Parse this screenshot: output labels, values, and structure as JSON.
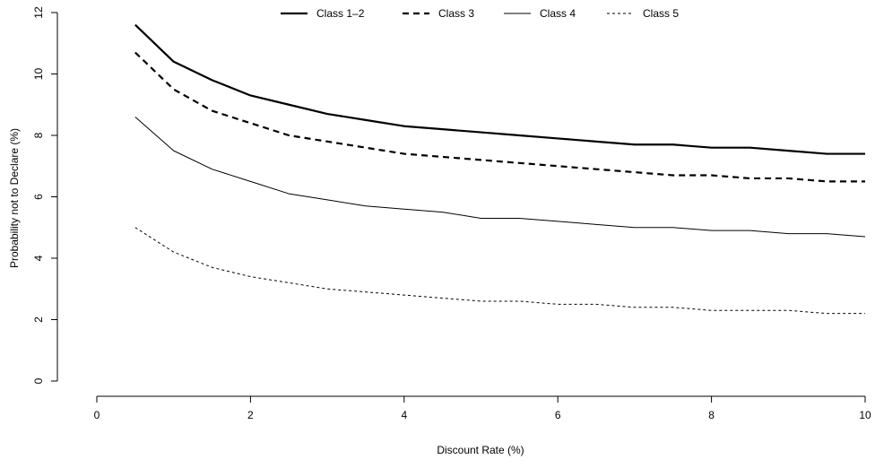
{
  "chart_data": {
    "type": "line",
    "title": "",
    "xlabel": "Discount Rate (%)",
    "ylabel": "Probability not to Declare (%)",
    "xlim": [
      0,
      10
    ],
    "ylim": [
      0,
      12
    ],
    "xticks": [
      0,
      2,
      4,
      6,
      8,
      10
    ],
    "yticks": [
      0,
      2,
      4,
      6,
      8,
      10,
      12
    ],
    "grid": false,
    "legend_position": "top",
    "x": [
      0.5,
      1.0,
      1.5,
      2.0,
      2.5,
      3.0,
      3.5,
      4.0,
      4.5,
      5.0,
      5.5,
      6.0,
      6.5,
      7.0,
      7.5,
      8.0,
      8.5,
      9.0,
      9.5,
      10.0
    ],
    "series": [
      {
        "name": "Class 1–2",
        "line_style": "solid-thick",
        "color": "#000000",
        "values": [
          11.6,
          10.4,
          9.8,
          9.3,
          9.0,
          8.7,
          8.5,
          8.3,
          8.2,
          8.1,
          8.0,
          7.9,
          7.8,
          7.7,
          7.7,
          7.6,
          7.6,
          7.5,
          7.4,
          7.4
        ]
      },
      {
        "name": "Class 3",
        "line_style": "dashed-thick",
        "color": "#000000",
        "values": [
          10.7,
          9.5,
          8.8,
          8.4,
          8.0,
          7.8,
          7.6,
          7.4,
          7.3,
          7.2,
          7.1,
          7.0,
          6.9,
          6.8,
          6.7,
          6.7,
          6.6,
          6.6,
          6.5,
          6.5
        ]
      },
      {
        "name": "Class 4",
        "line_style": "solid-thin",
        "color": "#000000",
        "values": [
          8.6,
          7.5,
          6.9,
          6.5,
          6.1,
          5.9,
          5.7,
          5.6,
          5.5,
          5.3,
          5.3,
          5.2,
          5.1,
          5.0,
          5.0,
          4.9,
          4.9,
          4.8,
          4.8,
          4.7
        ]
      },
      {
        "name": "Class 5",
        "line_style": "dotted-thin",
        "color": "#000000",
        "values": [
          5.0,
          4.2,
          3.7,
          3.4,
          3.2,
          3.0,
          2.9,
          2.8,
          2.7,
          2.6,
          2.6,
          2.5,
          2.5,
          2.4,
          2.4,
          2.3,
          2.3,
          2.3,
          2.2,
          2.2
        ]
      }
    ]
  }
}
